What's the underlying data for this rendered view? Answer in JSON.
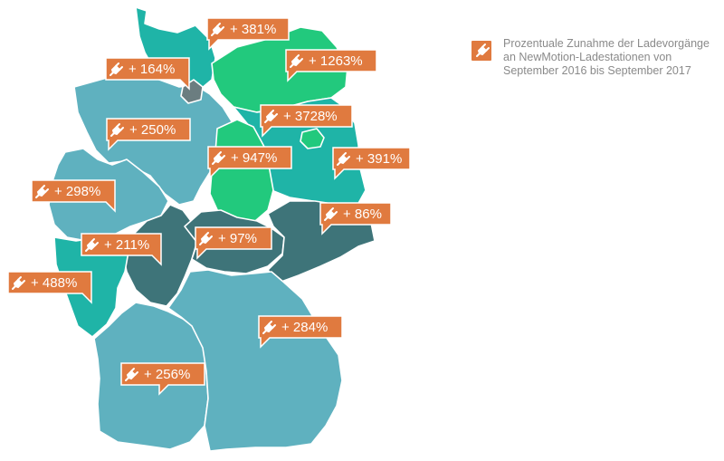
{
  "legend": {
    "text": "Prozentuale Zunahme der Ladevorgänge an NewMotion-Ladestationen von September 2016 bis September 2017",
    "icon": "plug-icon"
  },
  "colors": {
    "teal": "#1fb4a7",
    "green": "#22c97d",
    "light_blue": "#5fb1bf",
    "dark": "#3e7479",
    "gray": "#6b7d80",
    "label": "#e07a3f"
  },
  "regions": [
    {
      "id": "schleswig-holstein",
      "label": "+ 381%",
      "color": "teal"
    },
    {
      "id": "mecklenburg-vorpommern",
      "label": "+ 1263%",
      "color": "green"
    },
    {
      "id": "hamburg",
      "label": "+ 164%",
      "color": "gray"
    },
    {
      "id": "berlin",
      "label": "+ 3728%",
      "color": "green"
    },
    {
      "id": "niedersachsen",
      "label": "+ 250%",
      "color": "light_blue"
    },
    {
      "id": "sachsen-anhalt",
      "label": "+ 947%",
      "color": "green"
    },
    {
      "id": "brandenburg",
      "label": "+ 391%",
      "color": "teal"
    },
    {
      "id": "nordrhein-westfalen",
      "label": "+ 298%",
      "color": "light_blue"
    },
    {
      "id": "sachsen",
      "label": "+ 86%",
      "color": "dark"
    },
    {
      "id": "hessen",
      "label": "+ 211%",
      "color": "dark"
    },
    {
      "id": "thueringen",
      "label": "+ 97%",
      "color": "dark"
    },
    {
      "id": "rheinland-pfalz",
      "label": "+ 488%",
      "color": "teal"
    },
    {
      "id": "bayern",
      "label": "+ 284%",
      "color": "light_blue"
    },
    {
      "id": "baden-wuerttemberg",
      "label": "+ 256%",
      "color": "light_blue"
    }
  ]
}
